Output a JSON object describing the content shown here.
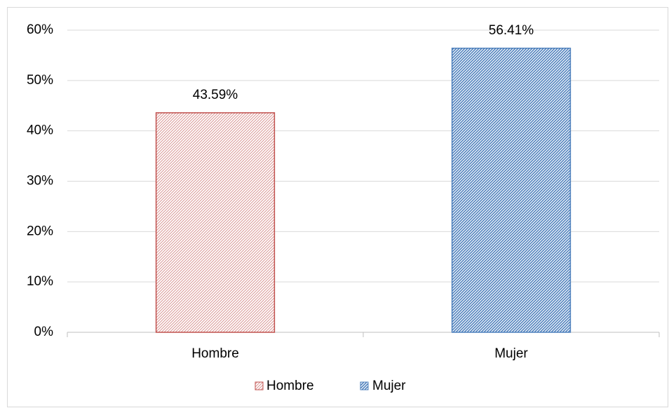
{
  "chart_data": {
    "type": "bar",
    "categories": [
      "Hombre",
      "Mujer"
    ],
    "values": [
      43.59,
      56.41
    ],
    "value_labels": [
      "43.59%",
      "56.41%"
    ],
    "colors": [
      "#c0504d",
      "#4f81bd"
    ],
    "ylim": [
      0,
      60
    ],
    "yticks": [
      {
        "value": 0,
        "label": "0%"
      },
      {
        "value": 10,
        "label": "10%"
      },
      {
        "value": 20,
        "label": "20%"
      },
      {
        "value": 30,
        "label": "30%"
      },
      {
        "value": 40,
        "label": "40%"
      },
      {
        "value": 50,
        "label": "50%"
      },
      {
        "value": 60,
        "label": "60%"
      }
    ],
    "grid": true,
    "legend": "bottom"
  }
}
